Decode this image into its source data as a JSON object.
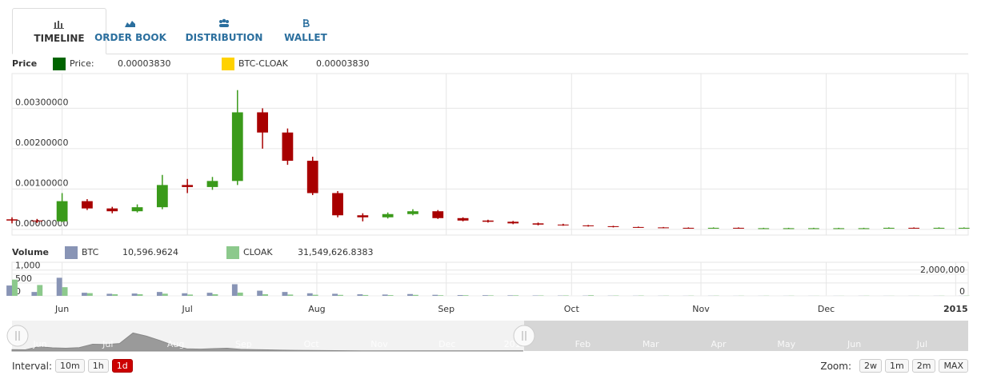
{
  "tabs": [
    "TIMELINE",
    "ORDER BOOK",
    "DISTRIBUTION",
    "WALLET"
  ],
  "chart_data": [
    {
      "type": "candlestick",
      "title": "Price",
      "legend": [
        {
          "name": "Price:",
          "value": "0.00003830",
          "color": "#006400"
        },
        {
          "name": "BTC-CLOAK",
          "value": "0.00003830",
          "color": "#ffd200"
        }
      ],
      "up_color": "#3a9a1a",
      "down_color": "#a80000",
      "x": [
        0,
        6,
        12,
        18,
        24,
        30,
        36,
        42,
        48,
        54,
        60,
        66,
        72,
        78,
        84,
        90,
        96,
        102,
        108,
        114,
        120,
        126,
        132,
        138,
        144,
        150,
        156,
        162,
        168,
        174,
        180,
        186,
        192,
        198,
        204,
        210,
        216,
        222,
        228
      ],
      "open": [
        0.00025,
        0.00022,
        0.0002,
        0.0007,
        0.00052,
        0.00045,
        0.00055,
        0.0011,
        0.00105,
        0.0012,
        0.0029,
        0.0024,
        0.0017,
        0.0009,
        0.00035,
        0.0003,
        0.00038,
        0.00045,
        0.00028,
        0.00022,
        0.00019,
        0.00015,
        0.00012,
        0.0001,
        8e-05,
        6e-05,
        5e-05,
        4e-05,
        3e-05,
        4e-05,
        3e-05,
        3e-05,
        3e-05,
        3e-05,
        3e-05,
        3e-05,
        4e-05,
        3e-05,
        4e-05
      ],
      "high": [
        0.0003,
        0.00026,
        0.0009,
        0.00075,
        0.00056,
        0.00062,
        0.00135,
        0.00125,
        0.0013,
        0.00345,
        0.003,
        0.0025,
        0.0018,
        0.00095,
        0.0004,
        0.00042,
        0.0005,
        0.00048,
        0.0003,
        0.00024,
        0.00021,
        0.00017,
        0.00014,
        0.00011,
        9e-05,
        7e-05,
        6e-05,
        5e-05,
        5e-05,
        5e-05,
        4e-05,
        4e-05,
        4e-05,
        4e-05,
        4e-05,
        5e-05,
        5e-05,
        5e-05,
        5e-05
      ],
      "low": [
        0.00015,
        0.00016,
        0.00018,
        0.00048,
        0.0004,
        0.00042,
        0.0005,
        0.0009,
        0.00098,
        0.0011,
        0.002,
        0.0016,
        0.00085,
        0.0003,
        0.0002,
        0.00027,
        0.00035,
        0.00026,
        0.0002,
        0.00017,
        0.00013,
        0.0001,
        9e-05,
        7e-05,
        5e-05,
        4e-05,
        3e-05,
        2e-05,
        2e-05,
        2e-05,
        2e-05,
        2e-05,
        2e-05,
        2e-05,
        2e-05,
        2e-05,
        2e-05,
        2e-05,
        3e-05
      ],
      "close": [
        0.00022,
        0.0002,
        0.0007,
        0.00052,
        0.00045,
        0.00055,
        0.0011,
        0.00105,
        0.0012,
        0.0029,
        0.0024,
        0.0017,
        0.0009,
        0.00035,
        0.0003,
        0.00038,
        0.00045,
        0.00028,
        0.00022,
        0.00019,
        0.00015,
        0.00012,
        0.0001,
        8e-05,
        6e-05,
        5e-05,
        4e-05,
        3e-05,
        4e-05,
        3e-05,
        3e-05,
        3e-05,
        3e-05,
        3e-05,
        3e-05,
        4e-05,
        3e-05,
        4e-05,
        4e-05
      ],
      "xlim": [
        0,
        229
      ],
      "xticks": [
        {
          "value": 12,
          "label": "Jun"
        },
        {
          "value": 42,
          "label": "Jul"
        },
        {
          "value": 73,
          "label": "Aug"
        },
        {
          "value": 104,
          "label": "Sep"
        },
        {
          "value": 134,
          "label": "Oct"
        },
        {
          "value": 165,
          "label": "Nov"
        },
        {
          "value": 195,
          "label": "Dec"
        },
        {
          "value": 226,
          "label": "2015"
        }
      ],
      "ylim": [
        -0.00014,
        0.00386
      ],
      "yticks": [
        {
          "value": 0,
          "label": "0.00000000"
        },
        {
          "value": 0.001,
          "label": "0.00100000"
        },
        {
          "value": 0.002,
          "label": "0.00200000"
        },
        {
          "value": 0.003,
          "label": "0.00300000"
        }
      ],
      "grid": true
    },
    {
      "type": "bar",
      "title": "Volume",
      "series": [
        {
          "name": "BTC",
          "value_label": "10,596.9624",
          "color": "#8894b5",
          "values": [
            400,
            150,
            700,
            120,
            80,
            90,
            150,
            100,
            120,
            450,
            200,
            150,
            100,
            80,
            60,
            50,
            70,
            40,
            30,
            25,
            20,
            15,
            12,
            10,
            8,
            6,
            5,
            4,
            5,
            3,
            3,
            3,
            3,
            3,
            4,
            3,
            3,
            4,
            4
          ]
        },
        {
          "name": "CLOAK",
          "value_label": "31,549,626.8383",
          "color": "#8cc98c",
          "axis": "y2",
          "values": [
            1500000,
            1000000,
            800000,
            250000,
            150000,
            150000,
            200000,
            120000,
            150000,
            300000,
            150000,
            120000,
            100000,
            90000,
            80000,
            70000,
            90000,
            60000,
            60000,
            50000,
            50000,
            40000,
            40000,
            60000,
            30000,
            30000,
            20000,
            20000,
            20000,
            15000,
            15000,
            15000,
            10000,
            10000,
            15000,
            10000,
            10000,
            15000,
            20000
          ]
        }
      ],
      "ylim": [
        0,
        1300
      ],
      "yticks": [
        0,
        500,
        {
          "value": 1000,
          "label": "1,000"
        }
      ],
      "y2lim": [
        0,
        3100000
      ],
      "y2ticks": [
        0,
        {
          "value": 2000000,
          "label": "2,000,000"
        }
      ]
    }
  ],
  "navigator": {
    "labels": [
      "Jun",
      "Jul",
      "Aug",
      "Sep",
      "Oct",
      "Nov",
      "Dec",
      "2015",
      "Feb",
      "Mar",
      "Apr",
      "May",
      "Jun",
      "Jul"
    ]
  },
  "interval": {
    "label": "Interval:",
    "options": [
      "10m",
      "1h",
      "1d"
    ],
    "active": 2
  },
  "zoom": {
    "label": "Zoom:",
    "options": [
      "2w",
      "1m",
      "2m",
      "MAX"
    ]
  }
}
